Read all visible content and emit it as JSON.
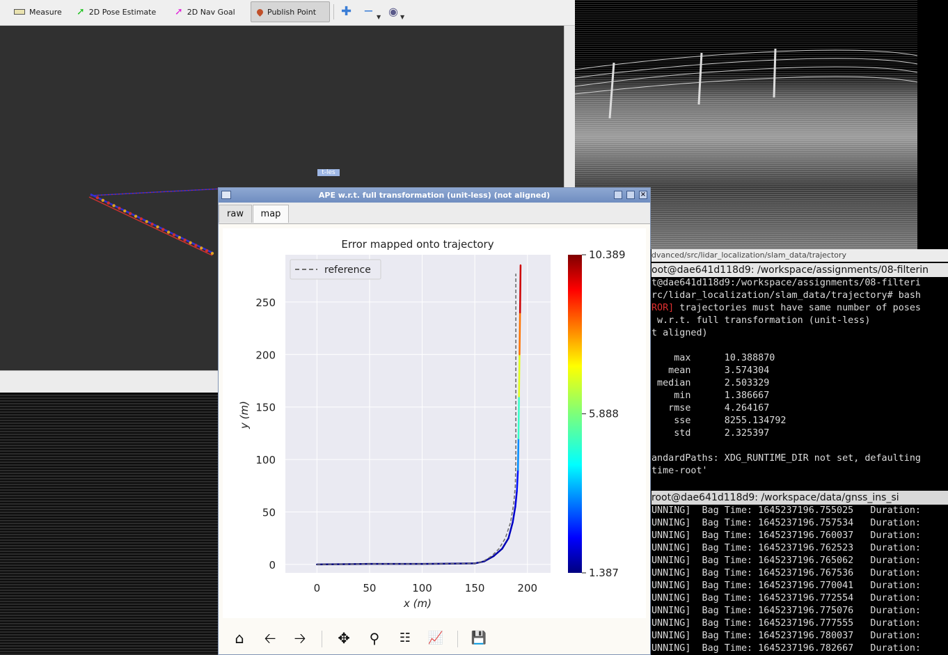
{
  "rviz": {
    "toolbar": [
      {
        "label": "Measure",
        "icon": "ruler-icon"
      },
      {
        "label": "2D Pose Estimate",
        "icon": "green-arrow-icon"
      },
      {
        "label": "2D Nav Goal",
        "icon": "magenta-arrow-icon"
      },
      {
        "label": "Publish Point",
        "icon": "map-pin-icon",
        "active": true
      }
    ],
    "extra_icons": [
      "plus-icon",
      "minus-icon",
      "eye-icon"
    ],
    "overlay_label": "t-les"
  },
  "plot_window": {
    "title": "APE w.r.t. full transformation (unit-less) (not aligned)",
    "tabs": [
      {
        "label": "raw",
        "active": false
      },
      {
        "label": "map",
        "active": true
      }
    ],
    "nav_icons": [
      "home-icon",
      "back-arrow-icon",
      "forward-arrow-icon",
      "pan-icon",
      "zoom-icon",
      "configure-icon",
      "edit-axis-icon",
      "save-icon"
    ]
  },
  "chart_data": {
    "type": "line",
    "title": "Error mapped onto trajectory",
    "xlabel": "x (m)",
    "ylabel": "y (m)",
    "xlim": [
      -30,
      222
    ],
    "ylim": [
      -8,
      295
    ],
    "xticks": [
      0,
      50,
      100,
      150,
      200
    ],
    "yticks": [
      0,
      50,
      100,
      150,
      200,
      250
    ],
    "grid": true,
    "legend": {
      "position": "top-left",
      "entries": [
        "reference"
      ]
    },
    "series": [
      {
        "name": "reference",
        "style": "dashed",
        "color": "#6e6e6e",
        "x": [
          0,
          50,
          100,
          150,
          158,
          166,
          173,
          179,
          184,
          187,
          188.5,
          189,
          189,
          189
        ],
        "y": [
          0,
          0.5,
          0.5,
          1,
          3,
          8,
          15,
          25,
          40,
          58,
          75,
          100,
          200,
          277
        ]
      },
      {
        "name": "",
        "style": "solid",
        "colormap": "jet",
        "x": [
          0,
          50,
          100,
          150,
          159,
          168,
          176,
          182,
          186,
          188.5,
          190,
          191,
          191.5,
          192,
          192.5,
          193,
          193.5
        ],
        "y": [
          0,
          0.5,
          0.5,
          1,
          3,
          8,
          15,
          25,
          40,
          55,
          70,
          90,
          120,
          160,
          200,
          240,
          285
        ],
        "error": [
          1.4,
          1.4,
          1.45,
          1.5,
          1.6,
          1.7,
          1.8,
          1.9,
          2.0,
          2.1,
          2.3,
          3.0,
          4.5,
          6.0,
          7.5,
          9.0,
          10.389
        ]
      }
    ],
    "colorbar": {
      "min": 1.387,
      "max": 10.389,
      "ticks": [
        "10.389",
        "5.888",
        "1.387"
      ]
    }
  },
  "terminal": {
    "title1": "dvanced/src/lidar_localization/slam_data/trajectory",
    "title2": "oot@dae641d118d9: /workspace/assignments/08-filterin",
    "lines_top": [
      "t@dae641d118d9:/workspace/assignments/08-filteri",
      "rc/lidar_localization/slam_data/trajectory# bash",
      "ROR] trajectories must have same number of poses",
      " w.r.t. full transformation (unit-less)",
      "t aligned)",
      "",
      "    max      10.388870",
      "   mean      3.574304",
      " median      2.503329",
      "    min      1.386667",
      "   rmse      4.264167",
      "    sse      8255.134792",
      "    std      2.325397",
      "",
      "andardPaths: XDG_RUNTIME_DIR not set, defaulting",
      "time-root'"
    ],
    "error_prefix": "ROR]",
    "title3": "    root@dae641d118d9: /workspace/data/gnss_ins_si",
    "bag_lines": [
      "UNNING]  Bag Time: 1645237196.755025   Duration:",
      "UNNING]  Bag Time: 1645237196.757534   Duration:",
      "UNNING]  Bag Time: 1645237196.760037   Duration:",
      "UNNING]  Bag Time: 1645237196.762523   Duration:",
      "UNNING]  Bag Time: 1645237196.765062   Duration:",
      "UNNING]  Bag Time: 1645237196.767536   Duration:",
      "UNNING]  Bag Time: 1645237196.770041   Duration:",
      "UNNING]  Bag Time: 1645237196.772554   Duration:",
      "UNNING]  Bag Time: 1645237196.775076   Duration:",
      "UNNING]  Bag Time: 1645237196.777555   Duration:",
      "UNNING]  Bag Time: 1645237196.780037   Duration:",
      "UNNING]  Bag Time: 1645237196.782667   Duration:"
    ]
  }
}
